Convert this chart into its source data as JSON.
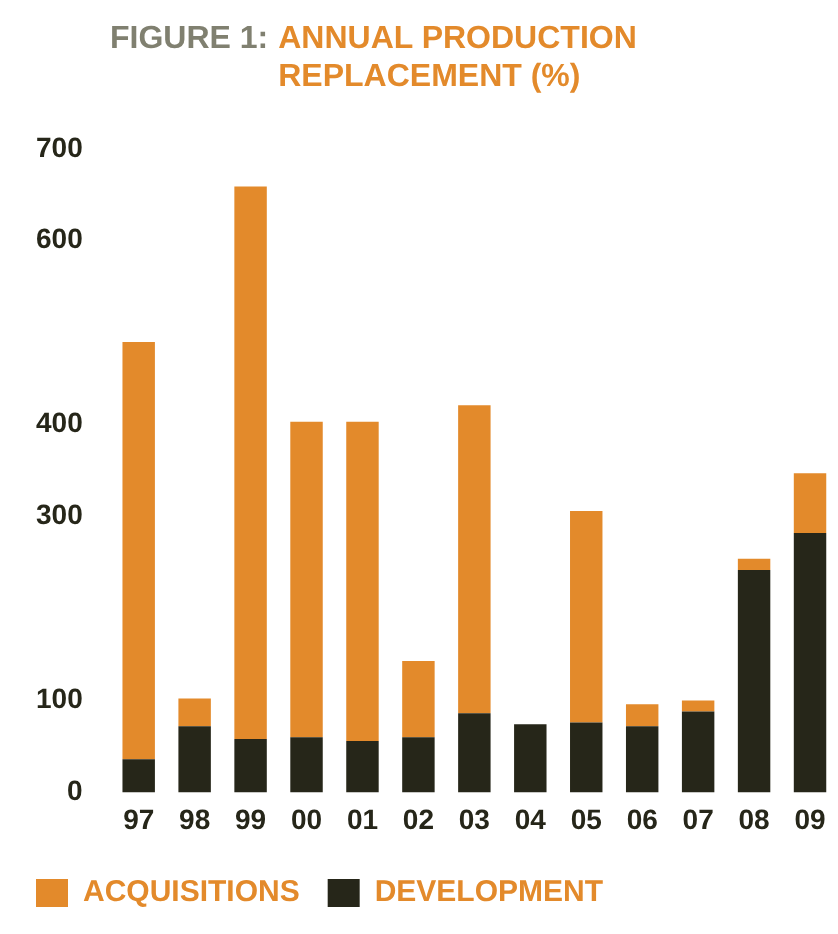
{
  "chart_data": {
    "type": "bar",
    "title": "FIGURE 1: ANNUAL PRODUCTION REPLACEMENT (%)",
    "categories": [
      "97",
      "98",
      "99",
      "00",
      "01",
      "02",
      "03",
      "04",
      "05",
      "06",
      "07",
      "08",
      "09"
    ],
    "stacked": true,
    "series": [
      {
        "name": "DEVELOPMENT",
        "color": "#262619",
        "values": [
          36,
          72,
          58,
          60,
          56,
          60,
          86,
          74,
          76,
          72,
          88,
          242,
          282
        ]
      },
      {
        "name": "ACQUISITIONS",
        "color": "#e38a2b",
        "values": [
          454,
          30,
          601,
          343,
          347,
          83,
          335,
          0,
          230,
          24,
          12,
          12,
          65
        ]
      }
    ],
    "ylim": [
      0,
      700
    ],
    "yticks": [
      0,
      100,
      300,
      400,
      600,
      700
    ],
    "grid": false,
    "legend": "bottom"
  }
}
